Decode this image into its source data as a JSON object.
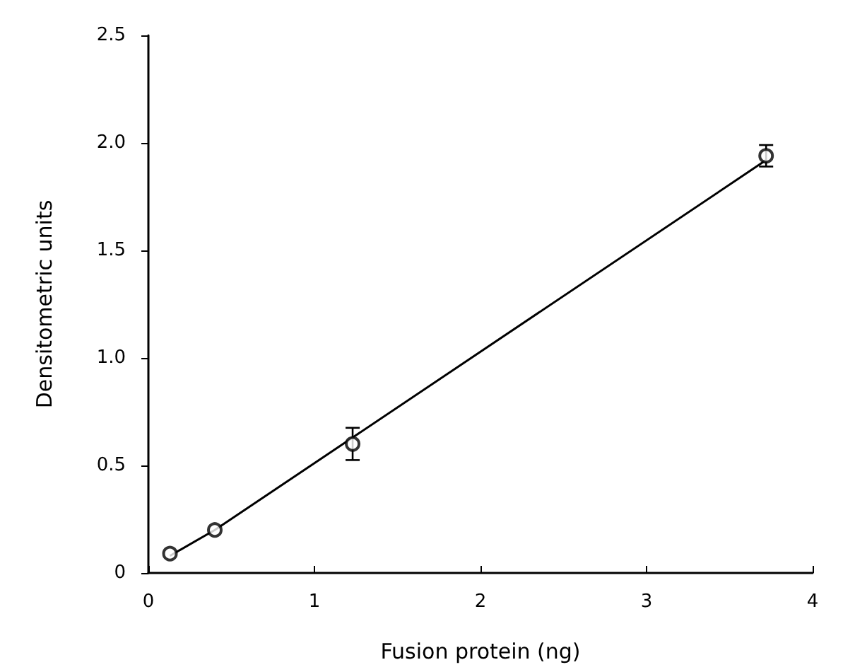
{
  "chart_data": {
    "type": "scatter",
    "xlabel": "Fusion protein (ng)",
    "ylabel": "Densitometric units",
    "series": [
      {
        "color": "#000000",
        "x": [
          0.13,
          0.4,
          1.23,
          3.72
        ],
        "values": [
          0.09,
          0.2,
          0.6,
          1.94
        ],
        "errors": [
          null,
          null,
          0.075,
          0.05
        ]
      },
      {
        "type": "line",
        "color": "#000000",
        "x": [
          0.13,
          0.4,
          1.23,
          3.72
        ],
        "values": [
          0.08,
          0.2,
          0.63,
          1.92
        ],
        "marker": "none",
        "line_style": "solid"
      }
    ],
    "xlim": [
      0,
      4
    ],
    "xticks": [
      0,
      1,
      2,
      3,
      4
    ],
    "ylim": [
      0,
      2.5
    ],
    "yticks": [
      0,
      0.5,
      {
        "value": 1,
        "label": "1.0"
      },
      1.5,
      {
        "value": 2,
        "label": "2.0"
      },
      2.5
    ],
    "marker": "circle",
    "grid": false
  }
}
